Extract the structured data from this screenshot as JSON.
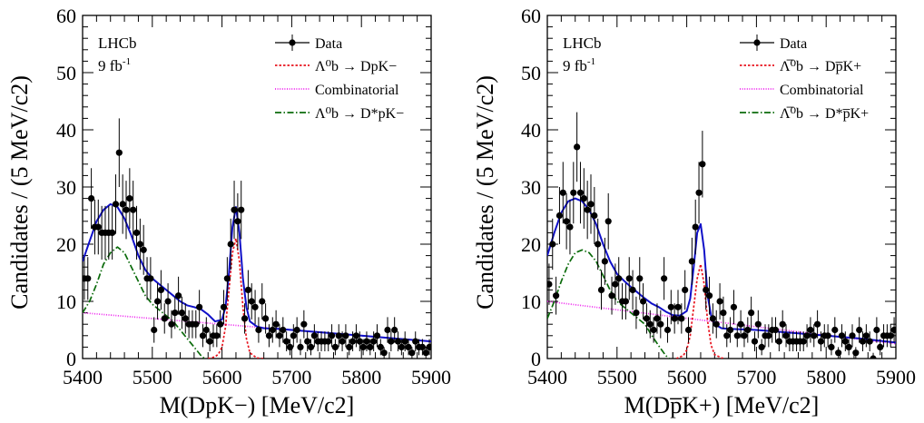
{
  "colors": {
    "data": "#000000",
    "signal": "#e8141e",
    "combinatorial": "#ee22ee",
    "background_dstar": "#0b6b0b",
    "total_fit": "#1010c8"
  },
  "chart_data": [
    {
      "type": "scatter",
      "experiment_label": "LHCb",
      "luminosity_label": "9 fb",
      "luminosity_sup": "-1",
      "xlabel": "M(DpK−) [MeV/c2]",
      "ylabel": "Candidates / (5 MeV/c2)",
      "xlim": [
        5400,
        5900
      ],
      "ylim": [
        0,
        60
      ],
      "xticks": [
        "5400",
        "5500",
        "5600",
        "5700",
        "5800",
        "5900"
      ],
      "yticks": [
        "0",
        "10",
        "20",
        "30",
        "40",
        "50",
        "60"
      ],
      "grid": false,
      "legend_position": "top-right",
      "legend": [
        {
          "key": "data",
          "label": "Data"
        },
        {
          "key": "signal",
          "label": "Λ⁰b → DpK−"
        },
        {
          "key": "combinatorial",
          "label": "Combinatorial"
        },
        {
          "key": "background_dstar",
          "label": "Λ⁰b → D*pK−"
        }
      ],
      "series": [
        {
          "key": "data",
          "name": "Data",
          "x": [
            5402.5,
            5407.5,
            5412.5,
            5417.5,
            5422.5,
            5427.5,
            5432.5,
            5437.5,
            5442.5,
            5447.5,
            5452.5,
            5457.5,
            5462.5,
            5467.5,
            5472.5,
            5477.5,
            5482.5,
            5487.5,
            5492.5,
            5497.5,
            5502.5,
            5507.5,
            5512.5,
            5517.5,
            5522.5,
            5527.5,
            5532.5,
            5537.5,
            5542.5,
            5547.5,
            5552.5,
            5557.5,
            5562.5,
            5567.5,
            5572.5,
            5577.5,
            5582.5,
            5587.5,
            5592.5,
            5597.5,
            5602.5,
            5607.5,
            5612.5,
            5617.5,
            5622.5,
            5627.5,
            5632.5,
            5637.5,
            5642.5,
            5647.5,
            5652.5,
            5657.5,
            5662.5,
            5667.5,
            5672.5,
            5677.5,
            5682.5,
            5687.5,
            5692.5,
            5697.5,
            5702.5,
            5707.5,
            5712.5,
            5717.5,
            5722.5,
            5727.5,
            5732.5,
            5737.5,
            5742.5,
            5747.5,
            5752.5,
            5757.5,
            5762.5,
            5767.5,
            5772.5,
            5777.5,
            5782.5,
            5787.5,
            5792.5,
            5797.5,
            5802.5,
            5807.5,
            5812.5,
            5817.5,
            5822.5,
            5827.5,
            5832.5,
            5837.5,
            5842.5,
            5847.5,
            5852.5,
            5857.5,
            5862.5,
            5867.5,
            5872.5,
            5877.5,
            5882.5,
            5887.5,
            5892.5,
            5897.5
          ],
          "y": [
            14,
            14,
            28,
            23,
            23,
            22,
            22,
            22,
            22,
            27,
            36,
            27,
            26,
            28,
            26,
            22,
            20,
            19,
            14,
            14,
            5,
            10,
            12,
            7,
            10,
            6,
            8,
            11,
            8,
            7,
            6,
            6,
            6,
            9,
            4,
            5,
            3,
            4,
            4,
            6,
            9,
            14,
            20,
            26,
            24,
            26,
            7,
            12,
            10,
            9,
            5,
            10,
            7,
            4,
            5,
            6,
            4,
            5,
            3,
            2,
            4,
            5,
            2,
            6,
            3,
            2,
            4,
            3,
            3,
            3,
            3,
            4,
            2,
            4,
            3,
            4,
            2,
            3,
            4,
            3,
            2,
            3,
            2,
            3,
            4,
            2,
            1,
            5,
            3,
            5,
            3,
            2,
            3,
            2,
            1,
            3,
            2,
            2,
            1,
            2
          ]
        },
        {
          "key": "total_fit",
          "name": "",
          "x": [
            5400,
            5410,
            5420,
            5430,
            5440,
            5450,
            5460,
            5470,
            5480,
            5490,
            5500,
            5510,
            5520,
            5530,
            5540,
            5550,
            5560,
            5570,
            5580,
            5590,
            5600,
            5605,
            5610,
            5615,
            5620,
            5625,
            5630,
            5635,
            5640,
            5650,
            5660,
            5680,
            5700,
            5750,
            5800,
            5850,
            5900
          ],
          "y": [
            17,
            20.5,
            24,
            26,
            27,
            26.5,
            24.5,
            21.5,
            18,
            15.5,
            14,
            13,
            12,
            11,
            10,
            9.3,
            9,
            8.6,
            7.7,
            6.5,
            6.8,
            9,
            15,
            23,
            26.5,
            22,
            14,
            9,
            6.5,
            5.6,
            5.3,
            5.2,
            5,
            4.5,
            4,
            3.5,
            3
          ]
        },
        {
          "key": "signal",
          "name": "",
          "x": [
            5580,
            5590,
            5595,
            5600,
            5605,
            5610,
            5615,
            5620,
            5625,
            5630,
            5635,
            5640,
            5650,
            5660
          ],
          "y": [
            0,
            0.3,
            0.8,
            2,
            5.5,
            12,
            18.5,
            21,
            17,
            9,
            3.5,
            1,
            0.1,
            0
          ]
        },
        {
          "key": "combinatorial",
          "name": "",
          "x": [
            5400,
            5900
          ],
          "y": [
            8,
            3
          ]
        },
        {
          "key": "background_dstar",
          "name": "",
          "x": [
            5400,
            5410,
            5420,
            5430,
            5440,
            5450,
            5460,
            5470,
            5480,
            5490,
            5500,
            5510,
            5520,
            5530,
            5540,
            5550,
            5560,
            5570,
            5575
          ],
          "y": [
            8,
            10,
            13,
            16.5,
            18.5,
            19.5,
            18.5,
            16,
            13.5,
            11,
            9.5,
            8.5,
            7.5,
            6.5,
            5,
            3.5,
            2,
            0.5,
            0
          ]
        }
      ]
    },
    {
      "type": "scatter",
      "experiment_label": "LHCb",
      "luminosity_label": "9 fb",
      "luminosity_sup": "-1",
      "xlabel": "M(Dp̅K+) [MeV/c2]",
      "ylabel": "Candidates / (5 MeV/c2)",
      "xlim": [
        5400,
        5900
      ],
      "ylim": [
        0,
        60
      ],
      "xticks": [
        "5400",
        "5500",
        "5600",
        "5700",
        "5800",
        "5900"
      ],
      "yticks": [
        "0",
        "10",
        "20",
        "30",
        "40",
        "50",
        "60"
      ],
      "grid": false,
      "legend_position": "top-right",
      "legend": [
        {
          "key": "data",
          "label": "Data"
        },
        {
          "key": "signal",
          "label": "Λ̅⁰b → Dp̅K+"
        },
        {
          "key": "combinatorial",
          "label": "Combinatorial"
        },
        {
          "key": "background_dstar",
          "label": "Λ̅⁰b → D*p̅K+"
        }
      ],
      "series": [
        {
          "key": "data",
          "name": "Data",
          "x": [
            5402.5,
            5407.5,
            5412.5,
            5417.5,
            5422.5,
            5427.5,
            5432.5,
            5437.5,
            5442.5,
            5447.5,
            5452.5,
            5457.5,
            5462.5,
            5467.5,
            5472.5,
            5477.5,
            5482.5,
            5487.5,
            5492.5,
            5497.5,
            5502.5,
            5507.5,
            5512.5,
            5517.5,
            5522.5,
            5527.5,
            5532.5,
            5537.5,
            5542.5,
            5547.5,
            5552.5,
            5557.5,
            5562.5,
            5567.5,
            5572.5,
            5577.5,
            5582.5,
            5587.5,
            5592.5,
            5597.5,
            5602.5,
            5607.5,
            5612.5,
            5617.5,
            5622.5,
            5627.5,
            5632.5,
            5637.5,
            5642.5,
            5647.5,
            5652.5,
            5657.5,
            5662.5,
            5667.5,
            5672.5,
            5677.5,
            5682.5,
            5687.5,
            5692.5,
            5697.5,
            5702.5,
            5707.5,
            5712.5,
            5717.5,
            5722.5,
            5727.5,
            5732.5,
            5737.5,
            5742.5,
            5747.5,
            5752.5,
            5757.5,
            5762.5,
            5767.5,
            5772.5,
            5777.5,
            5782.5,
            5787.5,
            5792.5,
            5797.5,
            5802.5,
            5807.5,
            5812.5,
            5817.5,
            5822.5,
            5827.5,
            5832.5,
            5837.5,
            5842.5,
            5847.5,
            5852.5,
            5857.5,
            5862.5,
            5867.5,
            5872.5,
            5877.5,
            5882.5,
            5887.5,
            5892.5,
            5897.5
          ],
          "y": [
            13,
            20,
            11,
            25,
            29,
            24,
            23,
            29,
            37,
            29,
            28,
            26,
            27,
            25,
            20,
            12,
            17,
            24,
            11,
            13,
            14,
            10,
            10,
            14,
            12,
            8,
            14,
            10,
            7,
            6,
            5,
            7,
            6,
            14,
            5,
            9,
            7,
            9,
            7,
            12,
            5,
            17,
            23,
            29,
            34,
            12,
            11,
            7,
            6,
            10,
            8,
            4,
            5,
            9,
            4,
            6,
            4,
            5,
            8,
            3,
            6,
            2,
            4,
            4,
            5,
            5,
            3,
            6,
            4,
            3,
            3,
            3,
            3,
            3,
            4,
            5,
            4,
            6,
            3,
            4,
            4,
            2,
            5,
            1,
            4,
            3,
            2,
            4,
            1,
            5,
            3,
            4,
            3,
            0,
            5,
            2,
            4,
            4,
            4,
            5
          ]
        },
        {
          "key": "total_fit",
          "name": "",
          "x": [
            5400,
            5410,
            5420,
            5430,
            5440,
            5450,
            5460,
            5470,
            5480,
            5490,
            5500,
            5510,
            5520,
            5530,
            5540,
            5550,
            5560,
            5570,
            5580,
            5590,
            5600,
            5605,
            5610,
            5615,
            5620,
            5625,
            5630,
            5635,
            5640,
            5650,
            5660,
            5680,
            5700,
            5750,
            5800,
            5850,
            5900
          ],
          "y": [
            18,
            22,
            25.5,
            27.5,
            28,
            27.5,
            26,
            23.5,
            20,
            17,
            14.8,
            13.6,
            12.5,
            11.5,
            10.5,
            9.6,
            9,
            8.2,
            7.6,
            7.5,
            8.3,
            10.5,
            16,
            22,
            23.5,
            19,
            11,
            7.5,
            6,
            5.3,
            5.2,
            5.1,
            5,
            4.5,
            4,
            3.5,
            2.8
          ]
        },
        {
          "key": "signal",
          "name": "",
          "x": [
            5585,
            5595,
            5600,
            5605,
            5610,
            5615,
            5620,
            5625,
            5630,
            5635,
            5640,
            5650,
            5655
          ],
          "y": [
            0,
            0.5,
            1.5,
            4,
            9,
            14,
            16.5,
            13,
            6.5,
            2.3,
            0.7,
            0.1,
            0
          ]
        },
        {
          "key": "combinatorial",
          "name": "",
          "x": [
            5400,
            5900
          ],
          "y": [
            10,
            2.6
          ]
        },
        {
          "key": "background_dstar",
          "name": "",
          "x": [
            5400,
            5410,
            5420,
            5430,
            5440,
            5450,
            5460,
            5470,
            5480,
            5490,
            5500,
            5510,
            5520,
            5530,
            5540,
            5550,
            5560,
            5570,
            5575
          ],
          "y": [
            7,
            10,
            13.5,
            16.5,
            18.5,
            19,
            18.5,
            17,
            14.5,
            12,
            10,
            9,
            8,
            7,
            6,
            4,
            2.2,
            0.5,
            0
          ]
        }
      ]
    }
  ]
}
